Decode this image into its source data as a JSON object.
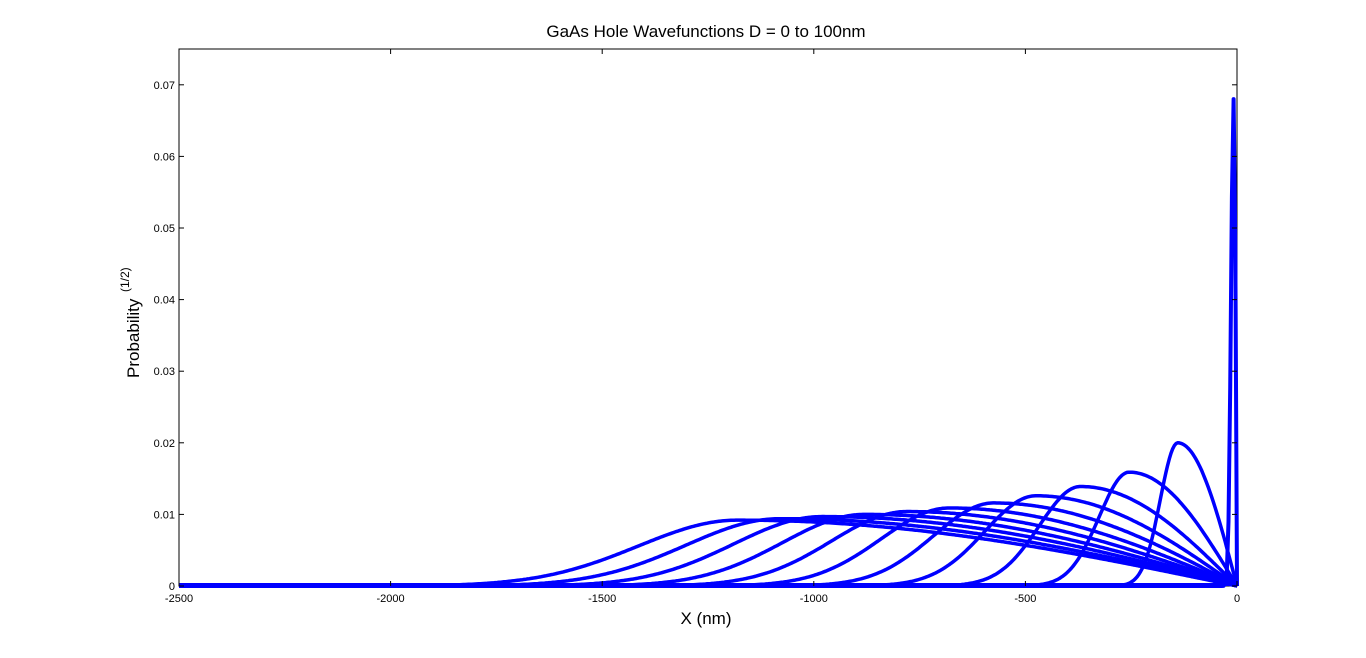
{
  "chart_data": {
    "type": "line",
    "title": "GaAs Hole Wavefunctions D = 0 to 100nm",
    "xlabel": "X (nm)",
    "ylabel": "Probability",
    "ylabel_superscript": "(1/2)",
    "xlim": [
      -2500,
      0
    ],
    "ylim": [
      0,
      0.075
    ],
    "xticks": [
      -2500,
      -2000,
      -1500,
      -1000,
      -500,
      0
    ],
    "xtick_labels": [
      "-2500",
      "-2000",
      "-1500",
      "-1000",
      "-500",
      "0"
    ],
    "yticks": [
      0,
      0.01,
      0.02,
      0.03,
      0.04,
      0.05,
      0.06,
      0.07
    ],
    "ytick_labels": [
      "0",
      "0.01",
      "0.02",
      "0.03",
      "0.04",
      "0.05",
      "0.06",
      "0.07"
    ],
    "grid": false,
    "line_color": "#0000ff",
    "series": [
      {
        "peak_x": -8,
        "peak_y": 0.068,
        "width": 8
      },
      {
        "peak_x": -140,
        "peak_y": 0.02,
        "width": 55
      },
      {
        "peak_x": -255,
        "peak_y": 0.0159,
        "width": 95
      },
      {
        "peak_x": -370,
        "peak_y": 0.0139,
        "width": 130
      },
      {
        "peak_x": -475,
        "peak_y": 0.0126,
        "width": 162
      },
      {
        "peak_x": -575,
        "peak_y": 0.0116,
        "width": 190
      },
      {
        "peak_x": -680,
        "peak_y": 0.0109,
        "width": 215
      },
      {
        "peak_x": -780,
        "peak_y": 0.0104,
        "width": 238
      },
      {
        "peak_x": -880,
        "peak_y": 0.01,
        "width": 260
      },
      {
        "peak_x": -980,
        "peak_y": 0.0097,
        "width": 280
      },
      {
        "peak_x": -1080,
        "peak_y": 0.0094,
        "width": 298
      },
      {
        "peak_x": -1180,
        "peak_y": 0.0092,
        "width": 315
      }
    ]
  }
}
